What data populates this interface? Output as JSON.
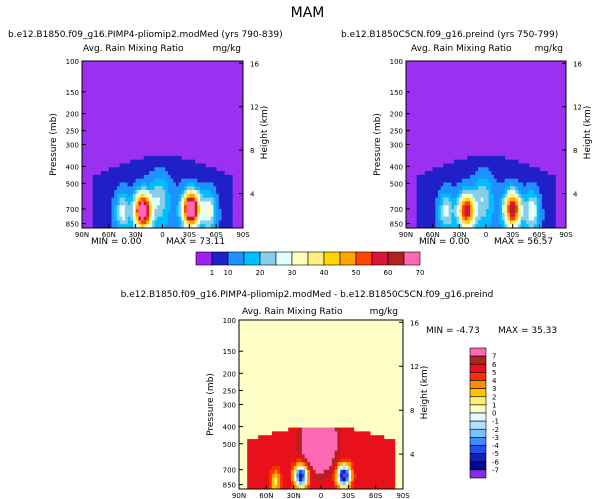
{
  "figure_title": "MAM",
  "chart_data": [
    {
      "type": "heatmap",
      "title": "b.e12.B1850.f09_g16.PIMP4-pliomip2.modMed (yrs 790-839)",
      "subtitle_left": "Avg. Rain Mixing Ratio",
      "units": "mg/kg",
      "ylabel": "Pressure (mb)",
      "y2label": "Height (km)",
      "x_ticks": [
        "90N",
        "60N",
        "30N",
        "0",
        "30S",
        "60S",
        "90S"
      ],
      "y_ticks": [
        "100",
        "150",
        "200",
        "250",
        "300",
        "400",
        "500",
        "700",
        "850"
      ],
      "y2_ticks": [
        "16",
        "12",
        "8",
        "4"
      ],
      "min_label": "MIN = 0.00",
      "max_label": "MAX = 73.11",
      "min": 0.0,
      "max": 73.11,
      "hotspots": [
        {
          "lat": 22,
          "p": 715,
          "value": 68
        },
        {
          "lat": -32,
          "p": 700,
          "value": 73
        }
      ]
    },
    {
      "type": "heatmap",
      "title": "b.e12.B1850C5CN.f09_g16.preind (yrs 750-799)",
      "subtitle_left": "Avg. Rain Mixing Ratio",
      "units": "mg/kg",
      "ylabel": "Pressure (mb)",
      "y2label": "Height (km)",
      "x_ticks": [
        "90N",
        "60N",
        "30N",
        "0",
        "30S",
        "60S",
        "90S"
      ],
      "y_ticks": [
        "100",
        "150",
        "200",
        "250",
        "300",
        "400",
        "500",
        "700",
        "850"
      ],
      "y2_ticks": [
        "16",
        "12",
        "8",
        "4"
      ],
      "min_label": "MIN = 0.00",
      "max_label": "MAX = 56.57",
      "min": 0.0,
      "max": 56.57,
      "hotspots": [
        {
          "lat": 22,
          "p": 715,
          "value": 50
        },
        {
          "lat": -30,
          "p": 700,
          "value": 56
        }
      ]
    },
    {
      "type": "heatmap",
      "title": "b.e12.B1850.f09_g16.PIMP4-pliomip2.modMed - b.e12.B1850C5CN.f09_g16.preind",
      "subtitle_left": "Avg. Rain Mixing Ratio",
      "units": "mg/kg",
      "ylabel": "Pressure (mb)",
      "y2label": "Height (km)",
      "x_ticks": [
        "90N",
        "60N",
        "30N",
        "0",
        "30S",
        "60S",
        "90S"
      ],
      "y_ticks": [
        "100",
        "150",
        "200",
        "250",
        "300",
        "400",
        "500",
        "700",
        "850"
      ],
      "y2_ticks": [
        "16",
        "12",
        "8",
        "4"
      ],
      "min_label": "MIN = -4.73",
      "max_label": "MAX = 35.33",
      "min": -4.73,
      "max": 35.33
    }
  ],
  "colorbar_abs": {
    "labels": [
      "1",
      "10",
      "20",
      "30",
      "40",
      "50",
      "60",
      "70"
    ],
    "colors": [
      "#a020f0",
      "#2020c8",
      "#1e90ff",
      "#00bfff",
      "#87ceeb",
      "#e0ffff",
      "#ffffc0",
      "#ffef80",
      "#ffd700",
      "#ffa500",
      "#ff4500",
      "#dc143c",
      "#b22222",
      "#ff69b4"
    ]
  },
  "colorbar_diff": {
    "labels": [
      "7",
      "6",
      "5",
      "4",
      "3",
      "2",
      "1",
      "0",
      "-1",
      "-2",
      "-3",
      "-4",
      "-5",
      "-6",
      "-7"
    ],
    "colors": [
      "#ff69b4",
      "#b22222",
      "#e8101a",
      "#ff3000",
      "#ff8c00",
      "#ffc000",
      "#ffee70",
      "#ffffc8",
      "#e8f8ff",
      "#b0e0ff",
      "#78c0ff",
      "#3c8cff",
      "#1e50e6",
      "#141eb4",
      "#000a8c",
      "#8a2be2"
    ]
  },
  "colors": {
    "background_purple": "#9b30f0",
    "zero_fill": "#ffffc8"
  }
}
